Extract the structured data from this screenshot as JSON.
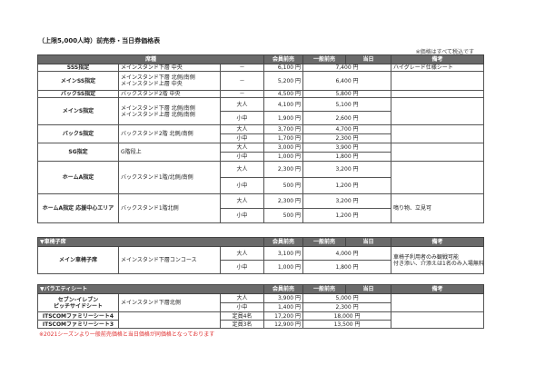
{
  "title": "（上限5,000人時）前売券・当日券価格表",
  "tax_note": "※価格はすべて税込です",
  "headers": {
    "seat": "席種",
    "member": "会員前売",
    "general": "一般前売",
    "dayof": "当日",
    "remarks": "備考"
  },
  "main": [
    {
      "name": "SSS指定",
      "loc": [
        "メインスタンド下層 中央"
      ],
      "rows": [
        {
          "type": "－",
          "member": "6,100 円",
          "general": "7,400 円"
        }
      ],
      "remarks": "ハイグレード仕様シート"
    },
    {
      "name": "メインSS指定",
      "loc": [
        "メインスタンド下層 北側/南側",
        "メインスタンド上層 中央"
      ],
      "rows": [
        {
          "type": "－",
          "member": "5,200 円",
          "general": "6,400 円"
        }
      ],
      "remarks": ""
    },
    {
      "name": "バックSS指定",
      "loc": [
        "バックスタンド2階 中央"
      ],
      "rows": [
        {
          "type": "－",
          "member": "4,500 円",
          "general": "5,800 円"
        }
      ],
      "remarks": ""
    },
    {
      "name": "メインS指定",
      "loc": [
        "メインスタンド下層 北側/南側",
        "メインスタンド上層 北側/南側"
      ],
      "rows": [
        {
          "type": "大人",
          "member": "4,100 円",
          "general": "5,100 円"
        },
        {
          "type": "小中",
          "member": "1,900 円",
          "general": "2,600 円"
        }
      ],
      "remarks": ""
    },
    {
      "name": "バックS指定",
      "loc": [
        "バックスタンド2階 北側/南側"
      ],
      "rows": [
        {
          "type": "大人",
          "member": "3,700 円",
          "general": "4,700 円"
        },
        {
          "type": "小中",
          "member": "1,700 円",
          "general": "2,300 円"
        }
      ],
      "remarks": ""
    },
    {
      "name": "SG指定",
      "loc": [
        "G階段上"
      ],
      "rows": [
        {
          "type": "大人",
          "member": "3,000 円",
          "general": "3,900 円"
        },
        {
          "type": "小中",
          "member": "1,000 円",
          "general": "1,800 円"
        }
      ],
      "remarks": ""
    },
    {
      "name": "ホームA指定",
      "loc": [
        "バックスタンド1階/北側/南側"
      ],
      "rows": [
        {
          "type": "大人",
          "member": "2,300 円",
          "general": "3,200 円"
        },
        {
          "type": "小中",
          "member": "500 円",
          "general": "1,200 円"
        }
      ],
      "remarks": ""
    },
    {
      "name": "ホームA指定 応援中心エリア",
      "loc": [
        "バックスタンド1階北側"
      ],
      "rows": [
        {
          "type": "大人",
          "member": "2,300 円",
          "general": "3,200 円"
        },
        {
          "type": "小中",
          "member": "500 円",
          "general": "1,200 円"
        }
      ],
      "remarks": "鳴り物、立見可"
    }
  ],
  "wheelchair": {
    "section": "▼車椅子席",
    "name": "メイン車椅子席",
    "loc": "メインスタンド下層コンコース",
    "rows": [
      {
        "type": "大人",
        "member": "3,100 円",
        "general": "4,000 円"
      },
      {
        "type": "小中",
        "member": "1,000 円",
        "general": "1,800 円"
      }
    ],
    "remarks": [
      "車椅子利用者のみ観戦可能",
      "付き添い、介添えは1名のみ入場無料"
    ]
  },
  "variety": {
    "section": "▼バラエティシート",
    "seven": {
      "name": [
        "セブン-イレブン",
        "ピッチサイドシート"
      ],
      "loc": "メインスタンド下層北側",
      "rows": [
        {
          "type": "大人",
          "member": "3,900 円",
          "general": "5,000 円"
        },
        {
          "type": "小中",
          "member": "1,400 円",
          "general": "2,300 円"
        }
      ]
    },
    "family": [
      {
        "name": "ITSCOMファミリーシート4",
        "type": "定員4名",
        "member": "17,200 円",
        "general": "18,000 円"
      },
      {
        "name": "ITSCOMファミリーシート3",
        "type": "定員3名",
        "member": "12,900 円",
        "general": "13,500 円"
      }
    ]
  },
  "footnote": "※2021シーズンより一般前売価格と当日価格が同価格となっております"
}
